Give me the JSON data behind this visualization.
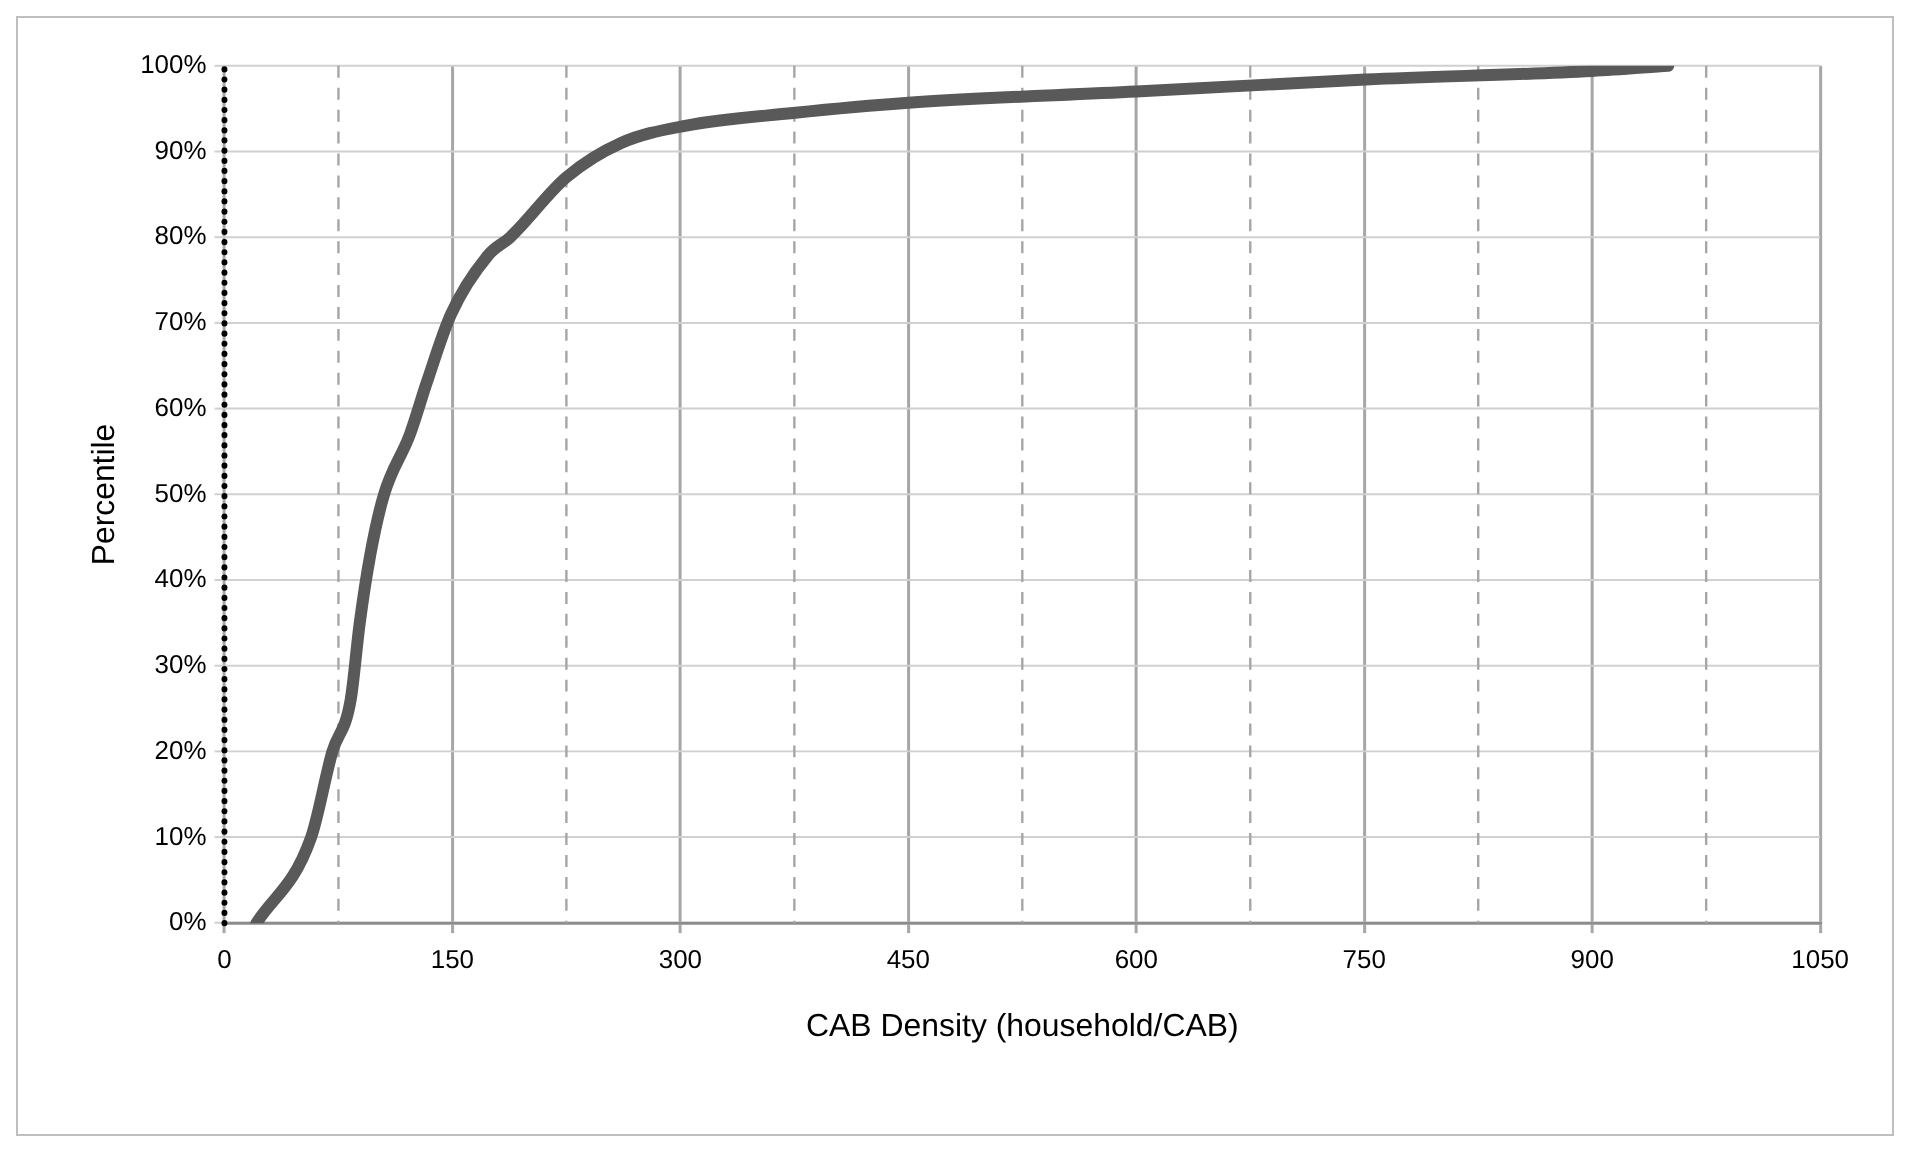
{
  "chart_data": {
    "type": "line",
    "xlabel": "CAB Density (household/CAB)",
    "ylabel": "Percentile",
    "series": [
      {
        "color": "#595959",
        "x": [
          21,
          57,
          71,
          83,
          89,
          96,
          105,
          122,
          133,
          149,
          174,
          188,
          225,
          261,
          303,
          374,
          450,
          600,
          751,
          900,
          950
        ],
        "values": [
          0,
          10,
          20,
          26,
          35,
          43,
          50,
          57,
          63,
          71,
          78,
          80,
          87,
          91,
          93,
          94.5,
          95.7,
          97,
          98.4,
          99.4,
          100
        ]
      }
    ],
    "xlim": [
      0,
      1050
    ],
    "xticks": [
      0,
      {
        "value": 75,
        "label": null
      },
      150,
      {
        "value": 225,
        "label": null
      },
      300,
      {
        "value": 375,
        "label": null
      },
      450,
      {
        "value": 525,
        "label": null
      },
      600,
      {
        "value": 675,
        "label": null
      },
      750,
      {
        "value": 825,
        "label": null
      },
      900,
      {
        "value": 975,
        "label": null
      },
      1050
    ],
    "ylim": [
      0,
      100
    ],
    "yticks": [
      {
        "value": 0,
        "label": "0%"
      },
      {
        "value": 10,
        "label": "10%"
      },
      {
        "value": 20,
        "label": "20%"
      },
      {
        "value": 30,
        "label": "30%"
      },
      {
        "value": 40,
        "label": "40%"
      },
      {
        "value": 50,
        "label": "50%"
      },
      {
        "value": 60,
        "label": "60%"
      },
      {
        "value": 70,
        "label": "70%"
      },
      {
        "value": 80,
        "label": "80%"
      },
      {
        "value": 90,
        "label": "90%"
      },
      {
        "value": 100,
        "label": "100%"
      }
    ],
    "grid": true,
    "legend": false,
    "marker": "none",
    "line_style": "solid"
  }
}
